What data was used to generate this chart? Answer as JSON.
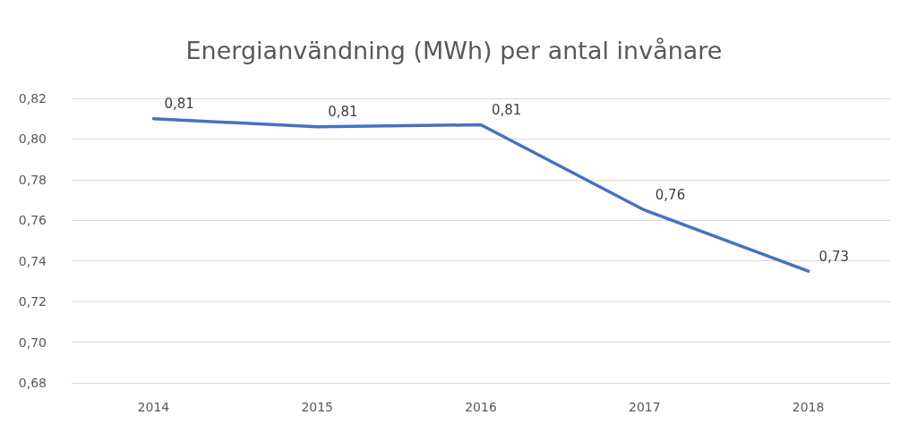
{
  "chart_data": {
    "type": "line",
    "title": "Energianvändning (MWh) per antal invånare",
    "categories": [
      "2014",
      "2015",
      "2016",
      "2017",
      "2018"
    ],
    "series": [
      {
        "color": "#4472c4",
        "values": [
          0.81,
          0.806,
          0.807,
          0.765,
          0.735
        ],
        "value_labels": [
          "0,81",
          "0,81",
          "0,81",
          "0,76",
          "0,73"
        ]
      }
    ],
    "ylim": [
      0.68,
      0.82
    ],
    "yticks": [
      {
        "value": 0.68,
        "label": "0,68"
      },
      {
        "value": 0.7,
        "label": "0,70"
      },
      {
        "value": 0.72,
        "label": "0,72"
      },
      {
        "value": 0.74,
        "label": "0,74"
      },
      {
        "value": 0.76,
        "label": "0,76"
      },
      {
        "value": 0.78,
        "label": "0,78"
      },
      {
        "value": 0.8,
        "label": "0,80"
      },
      {
        "value": 0.82,
        "label": "0,82"
      }
    ],
    "grid": "y",
    "marker": "none",
    "line_style": "solid"
  }
}
